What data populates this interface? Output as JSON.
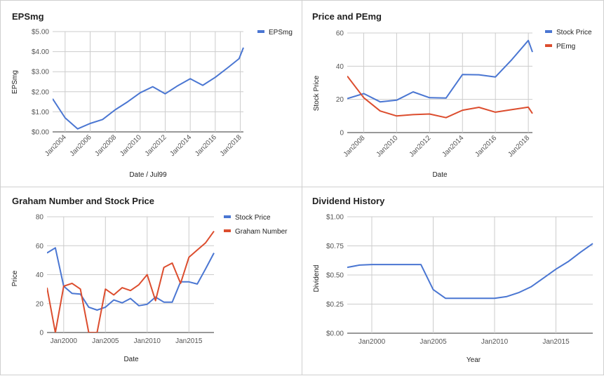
{
  "colors": {
    "blue": "#4a76d2",
    "red": "#dc4d2e",
    "grid": "#cccccc",
    "axis": "#333333"
  },
  "chart_data": [
    {
      "id": "eps",
      "type": "line",
      "title": "EPSmg",
      "xlabel": "Date / Jul99",
      "ylabel": "EPSmg",
      "xlim": [
        2003.0,
        2018.25
      ],
      "ylim": [
        0,
        5
      ],
      "yticks": [
        0,
        1,
        2,
        3,
        4,
        5
      ],
      "ytick_labels": [
        "$0.00",
        "$1.00",
        "$2.00",
        "$3.00",
        "$4.00",
        "$5.00"
      ],
      "xticks": [
        2004,
        2006,
        2008,
        2010,
        2012,
        2014,
        2016,
        2018
      ],
      "xtick_labels": [
        "Jan2004",
        "Jan2006",
        "Jan2008",
        "Jan2010",
        "Jan2012",
        "Jan2014",
        "Jan2016",
        "Jan2018"
      ],
      "legend_position": "top-right",
      "series": [
        {
          "name": "EPSmg",
          "color": "#4a76d2",
          "x": [
            2003.0,
            2004.0,
            2005.0,
            2006.0,
            2007.0,
            2008.0,
            2009.0,
            2010.0,
            2011.0,
            2012.0,
            2013.0,
            2014.0,
            2015.0,
            2016.0,
            2017.0,
            2017.9,
            2018.25
          ],
          "y": [
            1.65,
            0.7,
            0.15,
            0.42,
            0.62,
            1.1,
            1.5,
            1.95,
            2.25,
            1.9,
            2.3,
            2.65,
            2.32,
            2.72,
            3.2,
            3.65,
            4.2
          ]
        }
      ]
    },
    {
      "id": "pe",
      "type": "line",
      "title": "Price and PEmg",
      "xlabel": "Date",
      "ylabel": "Stock Price",
      "xlim": [
        2007.0,
        2018.25
      ],
      "ylim": [
        0,
        60
      ],
      "yticks": [
        0,
        20,
        40,
        60
      ],
      "ytick_labels": [
        "0",
        "20",
        "40",
        "60"
      ],
      "xticks": [
        2008,
        2010,
        2012,
        2014,
        2016,
        2018
      ],
      "xtick_labels": [
        "Jan2008",
        "Jan2010",
        "Jan2012",
        "Jan2014",
        "Jan2016",
        "Jan2018"
      ],
      "legend_position": "top-right",
      "series": [
        {
          "name": "Stock Price",
          "color": "#4a76d2",
          "x": [
            2007.0,
            2008.0,
            2009.0,
            2010.0,
            2011.0,
            2012.0,
            2013.0,
            2014.0,
            2015.0,
            2016.0,
            2017.0,
            2018.0,
            2018.25
          ],
          "y": [
            20.5,
            23.5,
            18.5,
            19.5,
            24.5,
            21.0,
            20.8,
            35.0,
            34.8,
            33.5,
            44.0,
            55.5,
            48.5
          ]
        },
        {
          "name": "PEmg",
          "color": "#dc4d2e",
          "x": [
            2007.0,
            2008.0,
            2009.0,
            2010.0,
            2011.0,
            2012.0,
            2013.0,
            2014.0,
            2015.0,
            2016.0,
            2017.0,
            2018.0,
            2018.25
          ],
          "y": [
            34.0,
            21.0,
            13.0,
            10.0,
            10.8,
            11.2,
            9.0,
            13.5,
            15.2,
            12.3,
            13.8,
            15.3,
            11.5
          ]
        }
      ]
    },
    {
      "id": "graham",
      "type": "line",
      "title": "Graham Number and Stock Price",
      "xlabel": "Date",
      "ylabel": "Price",
      "xlim": [
        1998.0,
        2018.0
      ],
      "ylim": [
        0,
        80
      ],
      "yticks": [
        0,
        20,
        40,
        60,
        80
      ],
      "ytick_labels": [
        "0",
        "20",
        "40",
        "60",
        "80"
      ],
      "xticks": [
        2000,
        2005,
        2010,
        2015
      ],
      "xtick_labels": [
        "Jan2000",
        "Jan2005",
        "Jan2010",
        "Jan2015"
      ],
      "legend_position": "top-right",
      "series": [
        {
          "name": "Stock Price",
          "color": "#4a76d2",
          "x": [
            1998.0,
            1999.0,
            2000.0,
            2001.0,
            2002.0,
            2003.0,
            2004.0,
            2005.0,
            2006.0,
            2007.0,
            2008.0,
            2009.0,
            2010.0,
            2011.0,
            2012.0,
            2013.0,
            2014.0,
            2015.0,
            2016.0,
            2017.0,
            2018.0
          ],
          "y": [
            55,
            58.5,
            32,
            27,
            26.5,
            17.5,
            15.5,
            17.5,
            22.5,
            20.5,
            23.5,
            18.5,
            19.5,
            24.5,
            21,
            21,
            35,
            35,
            33.5,
            44,
            55
          ]
        },
        {
          "name": "Graham Number",
          "color": "#dc4d2e",
          "x": [
            1998.0,
            1999.0,
            2000.0,
            2001.0,
            2002.0,
            2003.0,
            2004.0,
            2005.0,
            2006.0,
            2007.0,
            2008.0,
            2009.0,
            2010.0,
            2011.0,
            2012.0,
            2013.0,
            2014.0,
            2015.0,
            2016.0,
            2017.0,
            2018.0
          ],
          "y": [
            31,
            0,
            32,
            34,
            30,
            0,
            0,
            30,
            26,
            31,
            29,
            33,
            40,
            22,
            45,
            48,
            34,
            52,
            57,
            62,
            70
          ]
        }
      ]
    },
    {
      "id": "dividend",
      "type": "line",
      "title": "Dividend History",
      "xlabel": "Year",
      "ylabel": "Dividend",
      "xlim": [
        1998.0,
        2018.0
      ],
      "ylim": [
        0,
        1
      ],
      "yticks": [
        0,
        0.25,
        0.5,
        0.75,
        1.0
      ],
      "ytick_labels": [
        "$0.00",
        "$0.25",
        "$0.50",
        "$0.75",
        "$1.00"
      ],
      "xticks": [
        2000,
        2005,
        2010,
        2015
      ],
      "xtick_labels": [
        "Jan2000",
        "Jan2005",
        "Jan2010",
        "Jan2015"
      ],
      "series": [
        {
          "name": "",
          "color": "#4a76d2",
          "x": [
            1998.0,
            1999.0,
            2000.0,
            2001.0,
            2002.0,
            2003.0,
            2004.0,
            2005.0,
            2006.0,
            2007.0,
            2008.0,
            2009.0,
            2010.0,
            2011.0,
            2012.0,
            2013.0,
            2014.0,
            2015.0,
            2016.0,
            2017.0,
            2018.0
          ],
          "y": [
            0.565,
            0.585,
            0.59,
            0.59,
            0.59,
            0.59,
            0.59,
            0.375,
            0.3,
            0.3,
            0.3,
            0.3,
            0.3,
            0.315,
            0.35,
            0.4,
            0.475,
            0.55,
            0.615,
            0.695,
            0.77
          ]
        }
      ]
    }
  ]
}
